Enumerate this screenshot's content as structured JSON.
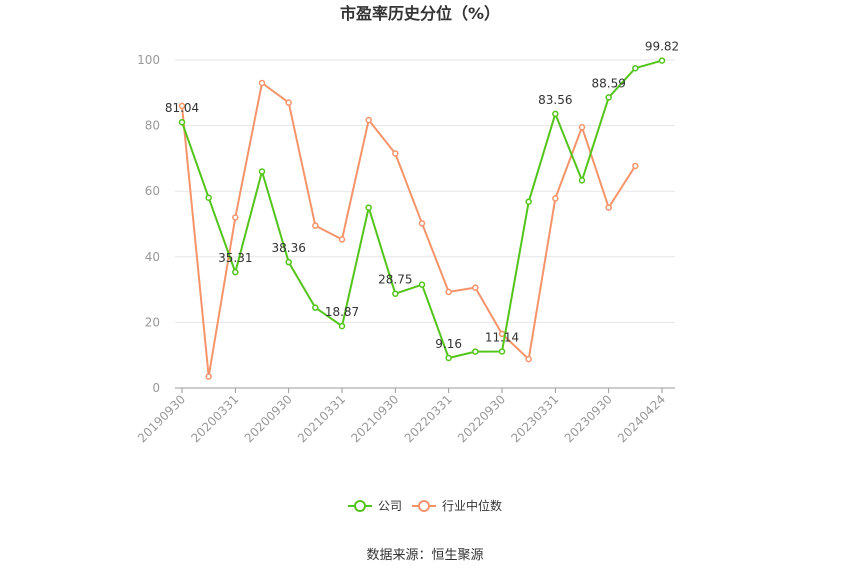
{
  "chart_data": {
    "type": "line",
    "title": "市盈率历史分位（%）",
    "xlabel": "",
    "ylabel": "",
    "ylim": [
      0,
      100
    ],
    "y_ticks": [
      "0",
      "20",
      "40",
      "60",
      "80",
      "100"
    ],
    "x_tick_labels": [
      "20190930",
      "20200331",
      "20200930",
      "20210331",
      "20210930",
      "20220331",
      "20220930",
      "20230331",
      "20230930",
      "20240424"
    ],
    "grid": true,
    "legend_position": "bottom",
    "series": [
      {
        "name": "公司",
        "color": "#52c41a",
        "values": [
          81.04,
          58,
          35.31,
          66,
          38.36,
          24.5,
          18.87,
          55,
          28.75,
          31.5,
          9.16,
          11.1,
          11.14,
          56.8,
          83.56,
          63.3,
          88.59,
          97.5,
          99.82
        ],
        "labels": [
          "81.04",
          "",
          "35.31",
          "",
          "38.36",
          "",
          "18.87",
          "",
          "28.75",
          "",
          "9.16",
          "",
          "11.14",
          "",
          "83.56",
          "",
          "88.59",
          "",
          "99.82"
        ]
      },
      {
        "name": "行业中位数",
        "color": "#f5946a",
        "values": [
          86,
          3.5,
          52,
          93,
          87,
          49.5,
          45.3,
          81.7,
          71.5,
          50.2,
          29.3,
          30.6,
          16.5,
          8.8,
          57.8,
          79.5,
          55,
          67.7,
          null
        ]
      }
    ]
  },
  "source_text": "数据来源：恒生聚源"
}
